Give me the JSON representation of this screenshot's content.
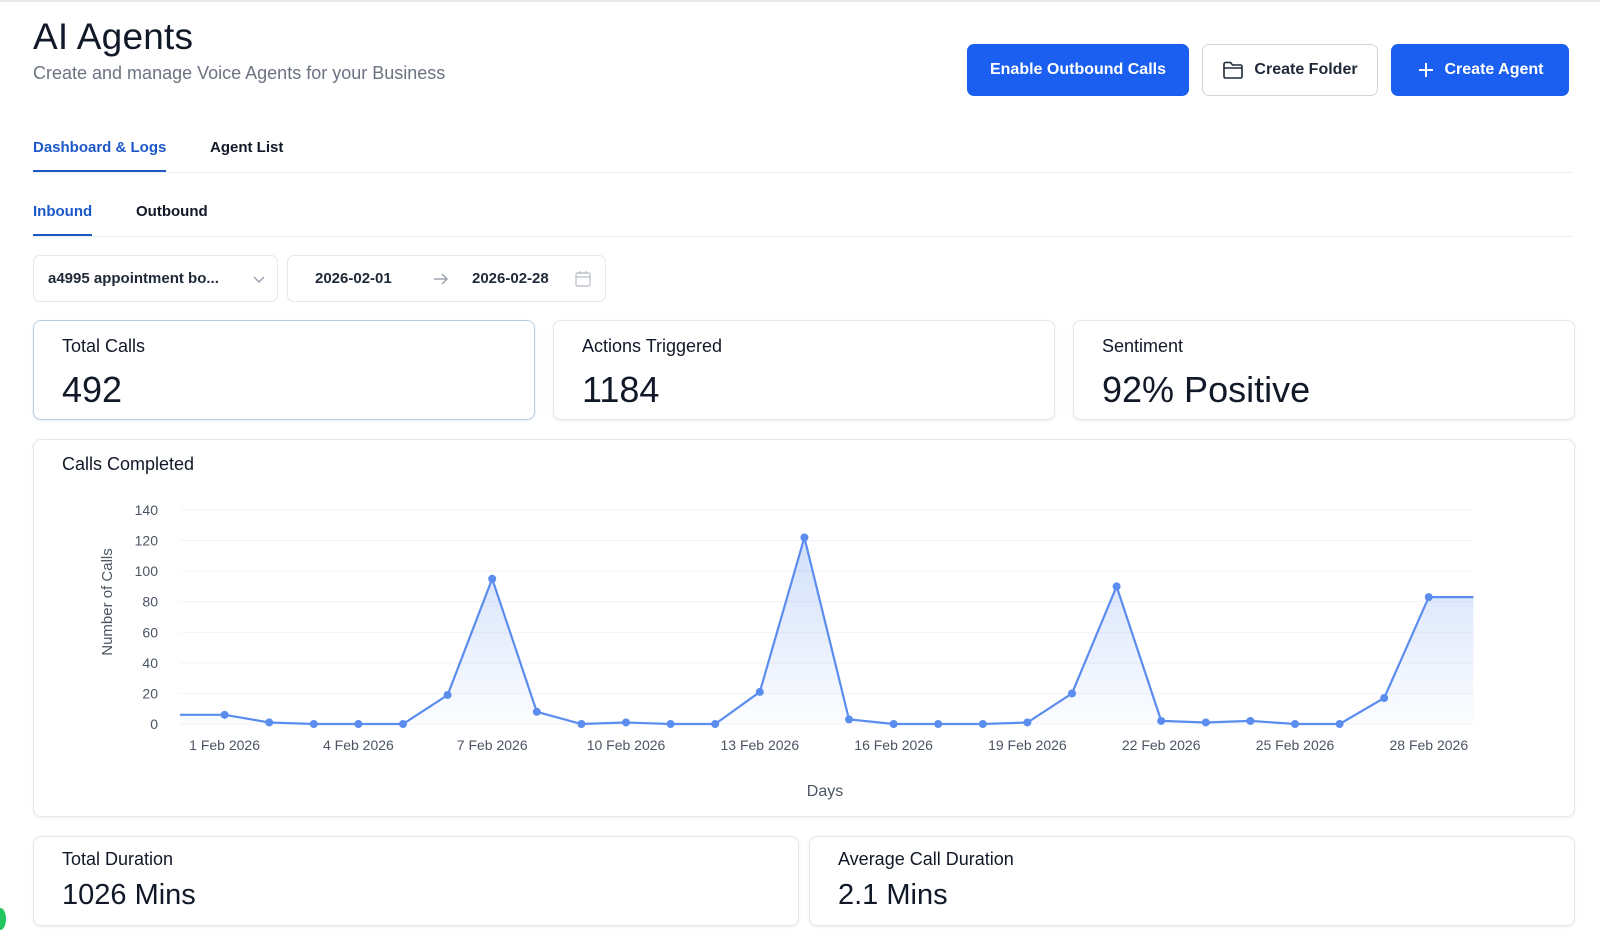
{
  "header": {
    "title": "AI Agents",
    "subtitle": "Create and manage Voice Agents for your Business",
    "buttons": {
      "enable_outbound": "Enable Outbound Calls",
      "create_folder": "Create Folder",
      "create_agent": "Create Agent"
    }
  },
  "main_tabs": [
    {
      "label": "Dashboard & Logs",
      "active": true
    },
    {
      "label": "Agent List",
      "active": false
    }
  ],
  "sub_tabs": [
    {
      "label": "Inbound",
      "active": true
    },
    {
      "label": "Outbound",
      "active": false
    }
  ],
  "filters": {
    "agent_select": "a4995 appointment bo...",
    "date_start": "2026-02-01",
    "date_end": "2026-02-28"
  },
  "stats": {
    "total_calls": {
      "label": "Total Calls",
      "value": "492"
    },
    "actions_triggered": {
      "label": "Actions Triggered",
      "value": "1184"
    },
    "sentiment": {
      "label": "Sentiment",
      "value": "92% Positive"
    },
    "total_duration": {
      "label": "Total Duration",
      "value": "1026 Mins"
    },
    "avg_duration": {
      "label": "Average Call Duration",
      "value": "2.1 Mins"
    }
  },
  "chart_card": {
    "title": "Calls Completed"
  },
  "colors": {
    "accent": "#1a5ff0",
    "line": "#5b8def",
    "active_tab": "#1d58c9"
  },
  "icons": {
    "folder": "folder-icon",
    "plus": "plus-icon",
    "chevron": "chevron-down-icon",
    "arrow": "arrow-right-icon",
    "calendar": "calendar-icon"
  },
  "chart_data": {
    "type": "area",
    "title": "",
    "xlabel": "Days",
    "ylabel": "Number of Calls",
    "ylim": [
      0,
      140
    ],
    "yticks": [
      0,
      20,
      40,
      60,
      80,
      100,
      120,
      140
    ],
    "x": [
      "31 Jan 2026",
      "1 Feb 2026",
      "2 Feb 2026",
      "3 Feb 2026",
      "4 Feb 2026",
      "5 Feb 2026",
      "6 Feb 2026",
      "7 Feb 2026",
      "8 Feb 2026",
      "9 Feb 2026",
      "10 Feb 2026",
      "11 Feb 2026",
      "12 Feb 2026",
      "13 Feb 2026",
      "14 Feb 2026",
      "15 Feb 2026",
      "16 Feb 2026",
      "17 Feb 2026",
      "18 Feb 2026",
      "19 Feb 2026",
      "20 Feb 2026",
      "21 Feb 2026",
      "22 Feb 2026",
      "23 Feb 2026",
      "24 Feb 2026",
      "25 Feb 2026",
      "26 Feb 2026",
      "27 Feb 2026",
      "28 Feb 2026",
      "1 Mar 2026"
    ],
    "xtick_labels": [
      "1 Feb 2026",
      "4 Feb 2026",
      "7 Feb 2026",
      "10 Feb 2026",
      "13 Feb 2026",
      "16 Feb 2026",
      "19 Feb 2026",
      "22 Feb 2026",
      "25 Feb 2026",
      "28 Feb 2026"
    ],
    "values": [
      6,
      6,
      1,
      0,
      0,
      0,
      19,
      95,
      8,
      0,
      1,
      0,
      0,
      21,
      122,
      3,
      0,
      0,
      0,
      1,
      20,
      90,
      2,
      1,
      2,
      0,
      0,
      17,
      83,
      83
    ],
    "markers": [
      false,
      true,
      true,
      true,
      true,
      true,
      true,
      true,
      true,
      true,
      true,
      true,
      true,
      true,
      true,
      true,
      true,
      true,
      true,
      true,
      true,
      true,
      true,
      true,
      true,
      true,
      true,
      true,
      true,
      false
    ],
    "grid": true,
    "legend": "none"
  }
}
